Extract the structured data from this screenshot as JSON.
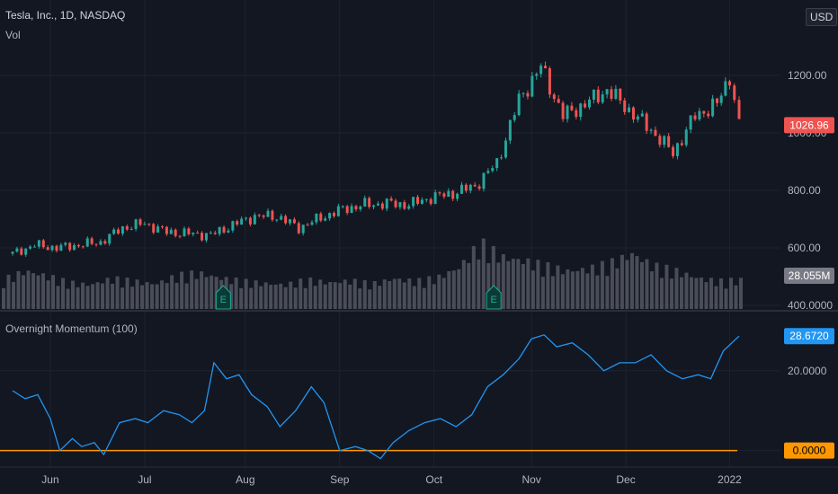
{
  "header": {
    "symbol": "Tesla, Inc., 1D, NASDAQ",
    "volume_label": "Vol",
    "currency_button": "USD"
  },
  "indicator": {
    "title": "Overnight Momentum (100)"
  },
  "colors": {
    "background": "#131722",
    "grid": "#1f2330",
    "up": "#26a69a",
    "down": "#ef5350",
    "volume": "#5d606b",
    "momentum": "#2196f3",
    "zero_line": "#ff9800",
    "text": "#b2b5be"
  },
  "chart_data": [
    {
      "type": "candlestick",
      "title": "Tesla, Inc., 1D, NASDAQ",
      "price_axis_ticks": [
        "1200.00",
        "1000.00",
        "800.00",
        "600.00",
        "400.0000"
      ],
      "price_axis_tick_values": [
        1200,
        1000,
        800,
        600,
        400
      ],
      "ylim": [
        400,
        1400
      ],
      "last_price": "1026.96",
      "time_axis_ticks": [
        "Jun",
        "Jul",
        "Aug",
        "Sep",
        "Oct",
        "Nov",
        "Dec",
        "2022"
      ],
      "time_axis_tick_dates": [
        "2021-06-01",
        "2021-07-01",
        "2021-08-02",
        "2021-09-01",
        "2021-10-01",
        "2021-11-01",
        "2021-12-01",
        "2022-01-03"
      ],
      "x_start": "2021-05-20",
      "x_end": "2022-01-06",
      "closes": [
        {
          "date": "2021-05-20",
          "close": 580
        },
        {
          "date": "2021-05-27",
          "close": 610
        },
        {
          "date": "2021-06-03",
          "close": 600
        },
        {
          "date": "2021-06-10",
          "close": 610
        },
        {
          "date": "2021-06-17",
          "close": 620
        },
        {
          "date": "2021-06-24",
          "close": 670
        },
        {
          "date": "2021-07-01",
          "close": 685
        },
        {
          "date": "2021-07-08",
          "close": 655
        },
        {
          "date": "2021-07-15",
          "close": 650
        },
        {
          "date": "2021-07-22",
          "close": 645
        },
        {
          "date": "2021-07-29",
          "close": 680
        },
        {
          "date": "2021-08-05",
          "close": 710
        },
        {
          "date": "2021-08-12",
          "close": 710
        },
        {
          "date": "2021-08-19",
          "close": 670
        },
        {
          "date": "2021-08-26",
          "close": 705
        },
        {
          "date": "2021-09-02",
          "close": 735
        },
        {
          "date": "2021-09-09",
          "close": 750
        },
        {
          "date": "2021-09-16",
          "close": 755
        },
        {
          "date": "2021-09-23",
          "close": 750
        },
        {
          "date": "2021-09-30",
          "close": 775
        },
        {
          "date": "2021-10-07",
          "close": 790
        },
        {
          "date": "2021-10-14",
          "close": 815
        },
        {
          "date": "2021-10-21",
          "close": 895
        },
        {
          "date": "2021-10-28",
          "close": 1115
        },
        {
          "date": "2021-11-04",
          "close": 1230
        },
        {
          "date": "2021-11-11",
          "close": 1060
        },
        {
          "date": "2021-11-18",
          "close": 1100
        },
        {
          "date": "2021-11-25",
          "close": 1150
        },
        {
          "date": "2021-12-02",
          "close": 1080
        },
        {
          "date": "2021-12-09",
          "close": 1010
        },
        {
          "date": "2021-12-16",
          "close": 930
        },
        {
          "date": "2021-12-23",
          "close": 1060
        },
        {
          "date": "2021-12-30",
          "close": 1100
        },
        {
          "date": "2022-01-03",
          "close": 1200
        },
        {
          "date": "2022-01-06",
          "close": 1026.96
        }
      ]
    },
    {
      "type": "bar",
      "title": "Vol",
      "last_value": "28.055M",
      "earnings_marker": "E",
      "earnings_dates": [
        "2021-07-26",
        "2021-10-20"
      ],
      "relative_volume": [
        0.42,
        0.55,
        0.48,
        0.38,
        0.35,
        0.44,
        0.4,
        0.36,
        0.48,
        0.52,
        0.45,
        0.4,
        0.37,
        0.35,
        0.42,
        0.38,
        0.41,
        0.36,
        0.44,
        0.4,
        0.45,
        0.6,
        0.95,
        0.75,
        0.7,
        0.62,
        0.55,
        0.58,
        0.66,
        0.8,
        0.62,
        0.55,
        0.45,
        0.4,
        0.42
      ]
    },
    {
      "type": "line",
      "title": "Overnight Momentum (100)",
      "axis_ticks": [
        "20.0000",
        "0.0000"
      ],
      "axis_tick_values": [
        20,
        0
      ],
      "ylim": [
        -3,
        33
      ],
      "last_value": "28.6720",
      "zero_label": "0.0000",
      "values": [
        {
          "date": "2021-05-20",
          "value": 15
        },
        {
          "date": "2021-05-24",
          "value": 13
        },
        {
          "date": "2021-05-28",
          "value": 14
        },
        {
          "date": "2021-06-01",
          "value": 8
        },
        {
          "date": "2021-06-04",
          "value": 0
        },
        {
          "date": "2021-06-08",
          "value": 3
        },
        {
          "date": "2021-06-11",
          "value": 1
        },
        {
          "date": "2021-06-15",
          "value": 2
        },
        {
          "date": "2021-06-18",
          "value": -1
        },
        {
          "date": "2021-06-23",
          "value": 7
        },
        {
          "date": "2021-06-28",
          "value": 8
        },
        {
          "date": "2021-07-02",
          "value": 7
        },
        {
          "date": "2021-07-07",
          "value": 10
        },
        {
          "date": "2021-07-12",
          "value": 9
        },
        {
          "date": "2021-07-16",
          "value": 7
        },
        {
          "date": "2021-07-20",
          "value": 10
        },
        {
          "date": "2021-07-23",
          "value": 22
        },
        {
          "date": "2021-07-27",
          "value": 18
        },
        {
          "date": "2021-07-31",
          "value": 19
        },
        {
          "date": "2021-08-04",
          "value": 14
        },
        {
          "date": "2021-08-09",
          "value": 11
        },
        {
          "date": "2021-08-13",
          "value": 6
        },
        {
          "date": "2021-08-18",
          "value": 10
        },
        {
          "date": "2021-08-23",
          "value": 16
        },
        {
          "date": "2021-08-27",
          "value": 12
        },
        {
          "date": "2021-09-01",
          "value": 0
        },
        {
          "date": "2021-09-06",
          "value": 1
        },
        {
          "date": "2021-09-10",
          "value": 0
        },
        {
          "date": "2021-09-14",
          "value": -2
        },
        {
          "date": "2021-09-18",
          "value": 2
        },
        {
          "date": "2021-09-23",
          "value": 5
        },
        {
          "date": "2021-09-28",
          "value": 7
        },
        {
          "date": "2021-10-03",
          "value": 8
        },
        {
          "date": "2021-10-08",
          "value": 6
        },
        {
          "date": "2021-10-13",
          "value": 9
        },
        {
          "date": "2021-10-18",
          "value": 16
        },
        {
          "date": "2021-10-23",
          "value": 19
        },
        {
          "date": "2021-10-28",
          "value": 23
        },
        {
          "date": "2021-11-01",
          "value": 28
        },
        {
          "date": "2021-11-05",
          "value": 29
        },
        {
          "date": "2021-11-09",
          "value": 26
        },
        {
          "date": "2021-11-14",
          "value": 27
        },
        {
          "date": "2021-11-19",
          "value": 24
        },
        {
          "date": "2021-11-24",
          "value": 20
        },
        {
          "date": "2021-11-29",
          "value": 22
        },
        {
          "date": "2021-12-04",
          "value": 22
        },
        {
          "date": "2021-12-09",
          "value": 24
        },
        {
          "date": "2021-12-14",
          "value": 20
        },
        {
          "date": "2021-12-19",
          "value": 18
        },
        {
          "date": "2021-12-24",
          "value": 19
        },
        {
          "date": "2021-12-28",
          "value": 18
        },
        {
          "date": "2022-01-01",
          "value": 25
        },
        {
          "date": "2022-01-06",
          "value": 28.672
        }
      ]
    }
  ]
}
